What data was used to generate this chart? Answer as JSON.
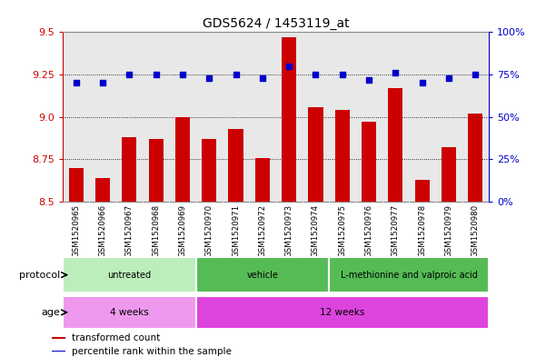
{
  "title": "GDS5624 / 1453119_at",
  "samples": [
    "GSM1520965",
    "GSM1520966",
    "GSM1520967",
    "GSM1520968",
    "GSM1520969",
    "GSM1520970",
    "GSM1520971",
    "GSM1520972",
    "GSM1520973",
    "GSM1520974",
    "GSM1520975",
    "GSM1520976",
    "GSM1520977",
    "GSM1520978",
    "GSM1520979",
    "GSM1520980"
  ],
  "transformed_count": [
    8.7,
    8.64,
    8.88,
    8.87,
    9.0,
    8.87,
    8.93,
    8.76,
    9.47,
    9.06,
    9.04,
    8.97,
    9.17,
    8.63,
    8.82,
    9.02
  ],
  "percentile_rank": [
    70,
    70,
    75,
    75,
    75,
    73,
    75,
    73,
    80,
    75,
    75,
    72,
    76,
    70,
    73,
    75
  ],
  "ylim_left": [
    8.5,
    9.5
  ],
  "ylim_right": [
    0,
    100
  ],
  "yticks_left": [
    8.5,
    8.75,
    9.0,
    9.25,
    9.5
  ],
  "yticks_right": [
    0,
    25,
    50,
    75,
    100
  ],
  "bar_color": "#cc0000",
  "dot_color": "#0000cc",
  "protocol_groups": [
    {
      "label": "untreated",
      "start": 0,
      "end": 4
    },
    {
      "label": "vehicle",
      "start": 5,
      "end": 9
    },
    {
      "label": "L-methionine and valproic acid",
      "start": 10,
      "end": 15
    }
  ],
  "proto_colors": [
    "#bbeebb",
    "#55bb55",
    "#55bb55"
  ],
  "age_groups": [
    {
      "label": "4 weeks",
      "start": 0,
      "end": 4
    },
    {
      "label": "12 weeks",
      "start": 5,
      "end": 15
    }
  ],
  "age_colors": [
    "#ee99ee",
    "#dd44dd"
  ],
  "legend_items": [
    {
      "label": "transformed count",
      "color": "#cc0000"
    },
    {
      "label": "percentile rank within the sample",
      "color": "#0000cc"
    }
  ],
  "protocol_label": "protocol",
  "age_label": "age",
  "left_axis_color": "#cc0000",
  "right_axis_color": "#0000cc",
  "bg_color": "#ffffff",
  "panel_bg": "#e8e8e8",
  "xticklabel_bg": "#d0d0d0"
}
